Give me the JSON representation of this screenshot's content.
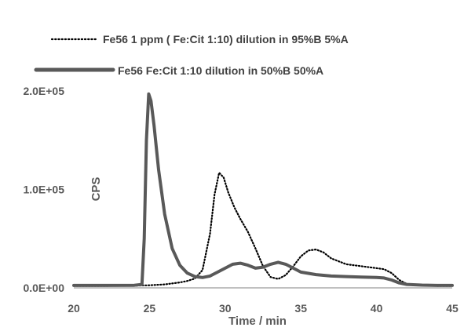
{
  "chart_data": {
    "type": "line",
    "title": "",
    "xlabel": "Time / min",
    "ylabel": "CPS",
    "xlim": [
      20,
      45
    ],
    "ylim": [
      0,
      200000
    ],
    "x_ticks": [
      20,
      25,
      30,
      35,
      40,
      45
    ],
    "x_tick_labels": [
      "20",
      "25",
      "30",
      "35",
      "40",
      "45"
    ],
    "y_ticks": [
      0,
      100000,
      200000
    ],
    "y_tick_labels": [
      "0.0E+00",
      "1.0E+05",
      "2.0E+05"
    ],
    "grid": false,
    "legend_position": "top",
    "series": [
      {
        "name": "Fe56 1 ppm ( Fe:Cit 1:10) dilution in 95%B 5%A",
        "style": "dotted",
        "color": "#000000",
        "points": [
          [
            20,
            2000
          ],
          [
            22,
            2000
          ],
          [
            24,
            2200
          ],
          [
            25,
            2600
          ],
          [
            26,
            3500
          ],
          [
            27,
            5500
          ],
          [
            27.5,
            7000
          ],
          [
            28,
            9500
          ],
          [
            28.5,
            18000
          ],
          [
            29,
            55000
          ],
          [
            29.3,
            95000
          ],
          [
            29.6,
            117000
          ],
          [
            29.9,
            112000
          ],
          [
            30.2,
            97000
          ],
          [
            30.6,
            82000
          ],
          [
            31,
            70000
          ],
          [
            31.5,
            57000
          ],
          [
            32,
            40000
          ],
          [
            32.5,
            22000
          ],
          [
            33,
            11000
          ],
          [
            33.5,
            9000
          ],
          [
            34,
            13000
          ],
          [
            34.5,
            22000
          ],
          [
            35,
            32000
          ],
          [
            35.5,
            38000
          ],
          [
            36,
            39000
          ],
          [
            36.5,
            36000
          ],
          [
            37,
            30000
          ],
          [
            38,
            24000
          ],
          [
            39,
            22000
          ],
          [
            40,
            20000
          ],
          [
            40.5,
            19000
          ],
          [
            41,
            15000
          ],
          [
            41.5,
            8000
          ],
          [
            42,
            4000
          ],
          [
            43,
            2500
          ],
          [
            44,
            2000
          ],
          [
            45,
            2000
          ]
        ]
      },
      {
        "name": "Fe56 Fe:Cit 1:10 dilution in 50%B 50%A",
        "style": "solid",
        "color": "#595959",
        "points": [
          [
            20,
            2500
          ],
          [
            22,
            2500
          ],
          [
            24,
            2600
          ],
          [
            24.5,
            3500
          ],
          [
            24.65,
            50000
          ],
          [
            24.8,
            150000
          ],
          [
            24.95,
            197000
          ],
          [
            25.1,
            190000
          ],
          [
            25.3,
            165000
          ],
          [
            25.6,
            120000
          ],
          [
            26,
            75000
          ],
          [
            26.5,
            40000
          ],
          [
            27,
            23000
          ],
          [
            27.5,
            15000
          ],
          [
            28,
            11500
          ],
          [
            28.5,
            10500
          ],
          [
            29,
            12000
          ],
          [
            29.5,
            16000
          ],
          [
            30,
            20000
          ],
          [
            30.5,
            24000
          ],
          [
            31,
            25000
          ],
          [
            31.5,
            23000
          ],
          [
            32,
            20000
          ],
          [
            32.5,
            21000
          ],
          [
            33,
            24000
          ],
          [
            33.5,
            26000
          ],
          [
            34,
            24000
          ],
          [
            34.5,
            20000
          ],
          [
            35,
            16000
          ],
          [
            36,
            13500
          ],
          [
            37,
            12000
          ],
          [
            38,
            11500
          ],
          [
            39,
            11000
          ],
          [
            40,
            10500
          ],
          [
            40.5,
            10000
          ],
          [
            41,
            8000
          ],
          [
            41.5,
            5000
          ],
          [
            42,
            3500
          ],
          [
            43,
            2800
          ],
          [
            44,
            2500
          ],
          [
            45,
            2500
          ]
        ]
      }
    ]
  }
}
